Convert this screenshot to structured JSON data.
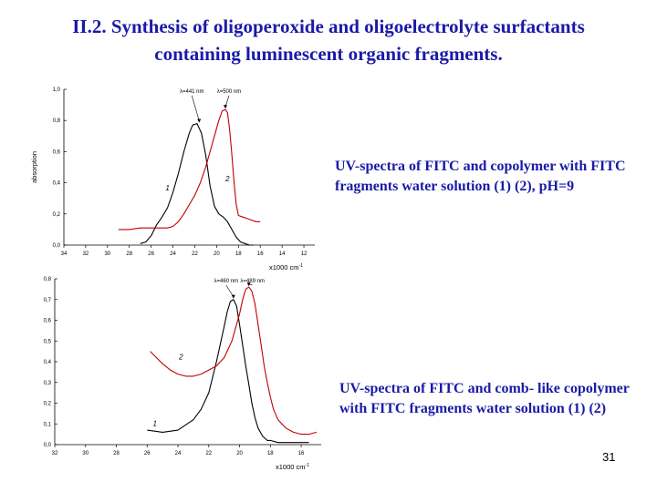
{
  "slide": {
    "title_line1": "II.2. Synthesis of oligoperoxide and oligoelectrolyte surfactants",
    "title_line2": "containing luminescent organic fragments.",
    "caption1": "UV-spectra of FITC and copolymer with FITC fragments water solution (1) (2), pH=9",
    "caption2": "UV-spectra of FITC and comb- like copolymer with FITC fragments water solution (1) (2)",
    "page_number": "31"
  },
  "chart_data": [
    {
      "type": "line",
      "ylabel": "absorption",
      "xlabel": "x1000 cm",
      "xlabel_exp": "-1",
      "xlim": [
        34,
        11
      ],
      "ylim": [
        0.0,
        1.0
      ],
      "xticks": [
        "34",
        "32",
        "30",
        "28",
        "26",
        "24",
        "22",
        "20",
        "18",
        "16",
        "14",
        "12"
      ],
      "yticks": [
        "0,0",
        "0,2",
        "0,4",
        "0,6",
        "0,8",
        "1,0"
      ],
      "series": [
        {
          "name": "1",
          "color": "#000000",
          "x": [
            27.0,
            26.5,
            26.0,
            25.5,
            25.0,
            24.5,
            24.0,
            23.5,
            23.0,
            22.5,
            22.2,
            21.8,
            21.4,
            21.0,
            20.6,
            20.2,
            19.8,
            19.4,
            19.0,
            18.6,
            18.2,
            17.8,
            17.4,
            17.0,
            16.6
          ],
          "y": [
            0.01,
            0.02,
            0.06,
            0.13,
            0.18,
            0.24,
            0.34,
            0.46,
            0.6,
            0.72,
            0.77,
            0.78,
            0.72,
            0.58,
            0.38,
            0.25,
            0.2,
            0.18,
            0.15,
            0.1,
            0.05,
            0.02,
            0.01,
            0.0,
            0.0
          ]
        },
        {
          "name": "2",
          "color": "#c00000",
          "x": [
            29.0,
            28.0,
            27.0,
            26.0,
            25.0,
            24.5,
            24.0,
            23.5,
            23.0,
            22.5,
            22.0,
            21.5,
            21.0,
            20.6,
            20.2,
            19.8,
            19.5,
            19.2,
            19.0,
            18.8,
            18.6,
            18.4,
            18.2,
            18.0,
            17.6,
            17.2,
            16.8,
            16.4,
            16.0
          ],
          "y": [
            0.1,
            0.1,
            0.11,
            0.11,
            0.11,
            0.11,
            0.12,
            0.15,
            0.2,
            0.26,
            0.32,
            0.4,
            0.5,
            0.6,
            0.7,
            0.8,
            0.86,
            0.87,
            0.85,
            0.74,
            0.58,
            0.4,
            0.26,
            0.19,
            0.18,
            0.17,
            0.16,
            0.15,
            0.15
          ]
        }
      ],
      "annotations": [
        {
          "text": "λ=441 nm",
          "x": 21.6,
          "y": 0.78
        },
        {
          "text": "λ=500 nm",
          "x": 19.2,
          "y": 0.87
        }
      ],
      "curve_labels": [
        {
          "text": "1",
          "x": 24.5,
          "y": 0.35
        },
        {
          "text": "2",
          "x": 19.0,
          "y": 0.41
        }
      ]
    },
    {
      "type": "line",
      "ylabel": "",
      "xlabel": "x1000 cm",
      "xlabel_exp": "-1",
      "xlim": [
        32,
        14.7
      ],
      "ylim": [
        0.0,
        0.8
      ],
      "xticks": [
        "32",
        "30",
        "28",
        "26",
        "24",
        "22",
        "20",
        "18",
        "16"
      ],
      "yticks": [
        "0,0",
        "0,1",
        "0,2",
        "0,3",
        "0,4",
        "0,5",
        "0,6",
        "0,7",
        "0,8"
      ],
      "series": [
        {
          "name": "1",
          "color": "#000000",
          "x": [
            26.0,
            25.0,
            24.0,
            23.0,
            22.5,
            22.0,
            21.5,
            21.0,
            20.8,
            20.6,
            20.4,
            20.2,
            20.0,
            19.8,
            19.6,
            19.4,
            19.2,
            19.0,
            18.8,
            18.5,
            18.2,
            18.0,
            17.5,
            17.0,
            16.5,
            16.0,
            15.5
          ],
          "y": [
            0.07,
            0.06,
            0.07,
            0.12,
            0.17,
            0.25,
            0.4,
            0.57,
            0.64,
            0.69,
            0.7,
            0.67,
            0.58,
            0.48,
            0.38,
            0.29,
            0.2,
            0.13,
            0.08,
            0.04,
            0.02,
            0.02,
            0.01,
            0.01,
            0.01,
            0.01,
            0.01
          ]
        },
        {
          "name": "2",
          "color": "#c00000",
          "x": [
            25.8,
            25.4,
            25.0,
            24.5,
            24.0,
            23.5,
            23.0,
            22.5,
            22.0,
            21.5,
            21.0,
            20.5,
            20.0,
            19.8,
            19.6,
            19.4,
            19.2,
            19.0,
            18.8,
            18.6,
            18.4,
            18.2,
            18.0,
            17.8,
            17.5,
            17.0,
            16.5,
            16.0,
            15.5,
            15.0
          ],
          "y": [
            0.45,
            0.42,
            0.39,
            0.36,
            0.34,
            0.33,
            0.33,
            0.34,
            0.36,
            0.38,
            0.42,
            0.5,
            0.63,
            0.7,
            0.75,
            0.76,
            0.74,
            0.68,
            0.58,
            0.48,
            0.38,
            0.3,
            0.23,
            0.17,
            0.12,
            0.08,
            0.06,
            0.05,
            0.05,
            0.06
          ]
        }
      ],
      "annotations": [
        {
          "text": "λ=460 nm",
          "x": 20.4,
          "y": 0.7
        },
        {
          "text": "λ=489 nm",
          "x": 19.4,
          "y": 0.76
        }
      ],
      "curve_labels": [
        {
          "text": "2",
          "x": 23.8,
          "y": 0.41
        },
        {
          "text": "1",
          "x": 25.5,
          "y": 0.09
        }
      ]
    }
  ]
}
